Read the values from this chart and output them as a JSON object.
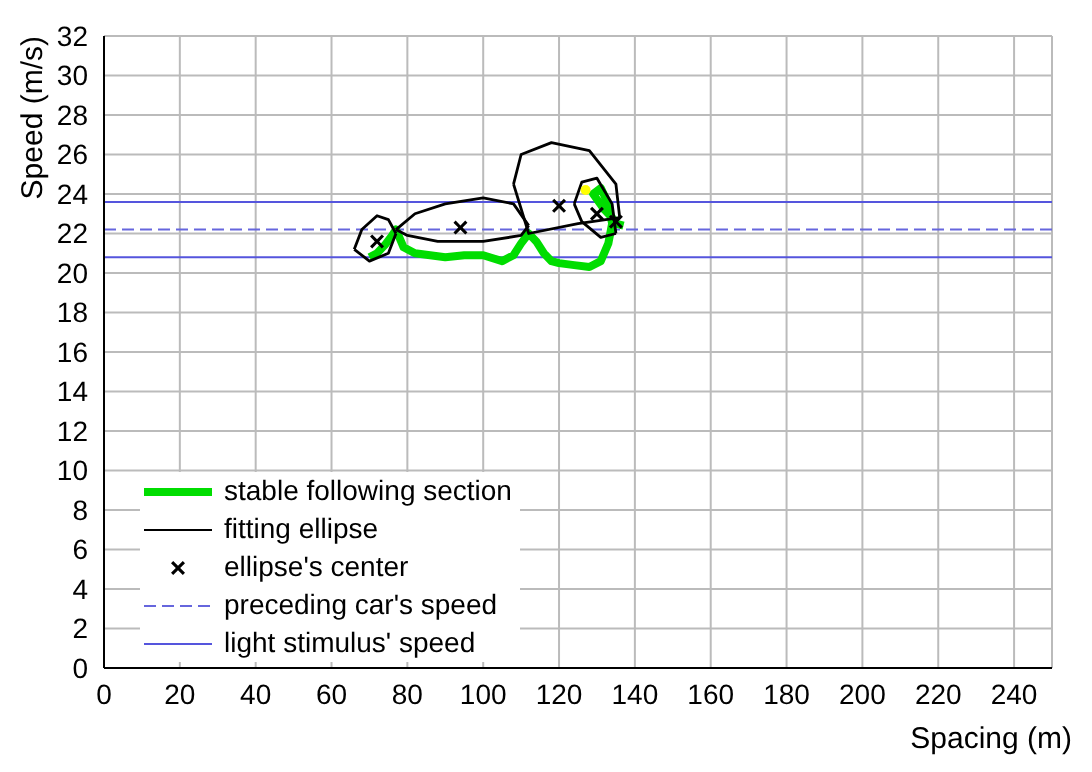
{
  "chart_data": {
    "type": "line",
    "xlabel": "Spacing (m)",
    "ylabel": "Speed (m/s)",
    "xlim": [
      0,
      250
    ],
    "xticks": [
      0,
      20,
      40,
      60,
      80,
      100,
      120,
      140,
      160,
      180,
      200,
      220,
      240
    ],
    "ylim": [
      0,
      32
    ],
    "yticks": [
      0,
      2,
      4,
      6,
      8,
      10,
      12,
      14,
      16,
      18,
      20,
      22,
      24,
      26,
      28,
      30,
      32
    ],
    "grid": true,
    "legend": "bottom left",
    "series": [
      {
        "name": "stable following section",
        "type": "line",
        "color": "#00dd00",
        "x": [
          70,
          72,
          74,
          76,
          77,
          79,
          82,
          86,
          90,
          95,
          100,
          105,
          108,
          110,
          112,
          114,
          116,
          118,
          120,
          124,
          128,
          131,
          133,
          134,
          133,
          131,
          129,
          132,
          134,
          135,
          137
        ],
        "values": [
          20.8,
          21.0,
          21.4,
          21.9,
          22.2,
          21.3,
          21.0,
          20.9,
          20.8,
          20.9,
          20.9,
          20.6,
          20.9,
          21.5,
          22.0,
          21.6,
          21.0,
          20.6,
          20.5,
          20.4,
          20.3,
          20.6,
          21.5,
          22.5,
          23.5,
          24.3,
          24.0,
          23.2,
          22.8,
          22.5,
          22.4
        ]
      },
      {
        "name": "fitting ellipse",
        "type": "line",
        "color": "#000000",
        "x": [
          66,
          68,
          72,
          75,
          77
        ],
        "values": [
          21.2,
          22.2,
          22.9,
          22.7,
          22.0
        ]
      },
      {
        "color": "#000000",
        "x": [
          66,
          70,
          75,
          77
        ],
        "values": [
          21.2,
          20.6,
          21.0,
          22.0
        ]
      },
      {
        "color": "#000000",
        "x": [
          77,
          82,
          90,
          100,
          108,
          112
        ],
        "values": [
          22.2,
          23.0,
          23.5,
          23.8,
          23.5,
          22.4
        ]
      },
      {
        "color": "#000000",
        "x": [
          77,
          80,
          88,
          100,
          110,
          112
        ],
        "values": [
          22.2,
          21.9,
          21.6,
          21.6,
          21.9,
          22.4
        ]
      },
      {
        "color": "#000000",
        "x": [
          108,
          110,
          118,
          128,
          135,
          136
        ],
        "values": [
          24.5,
          26.0,
          26.6,
          26.2,
          24.5,
          22.8
        ]
      },
      {
        "color": "#000000",
        "x": [
          108,
          112,
          125,
          136
        ],
        "values": [
          24.5,
          22.0,
          22.5,
          22.8
        ]
      },
      {
        "color": "#000000",
        "x": [
          124,
          126,
          130,
          134,
          135
        ],
        "values": [
          23.5,
          24.6,
          24.8,
          23.5,
          22.0
        ]
      },
      {
        "color": "#000000",
        "x": [
          124,
          126,
          131,
          135
        ],
        "values": [
          23.5,
          22.6,
          21.8,
          22.0
        ]
      },
      {
        "name": "ellipse's center",
        "type": "scatter",
        "marker": "cross",
        "color": "#000000",
        "x": [
          72,
          94,
          120,
          130,
          135
        ],
        "values": [
          21.6,
          22.3,
          23.4,
          23.0,
          22.6
        ]
      },
      {
        "type": "scatter",
        "marker": "circle",
        "color": "#ffff00",
        "x": [
          127
        ],
        "values": [
          24.2
        ]
      }
    ],
    "ref_lines": [
      {
        "axis": "y",
        "value": 22.2,
        "label": "preceding car's speed",
        "color": "#6666dd",
        "line_style": "dashed"
      },
      {
        "axis": "y",
        "value": 23.6,
        "label": "light stimulus' speed",
        "color": "#5555dd",
        "line_style": "solid"
      },
      {
        "axis": "y",
        "value": 20.8,
        "color": "#5555dd",
        "line_style": "solid"
      }
    ]
  }
}
